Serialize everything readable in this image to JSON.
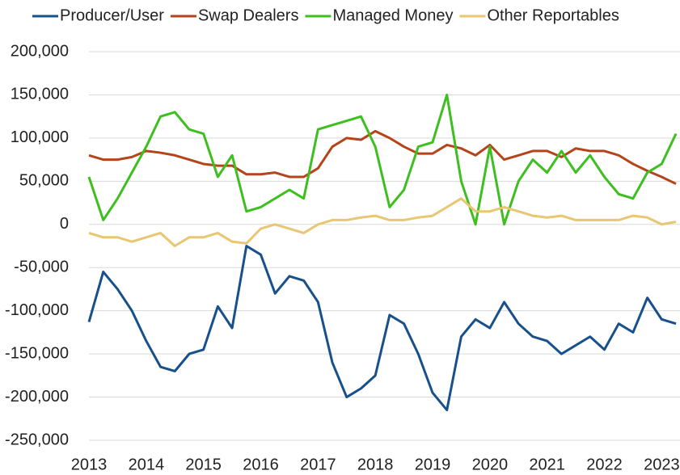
{
  "chart_data": {
    "type": "line",
    "x": [
      2013,
      2013.25,
      2013.5,
      2013.75,
      2014,
      2014.25,
      2014.5,
      2014.75,
      2015,
      2015.25,
      2015.5,
      2015.75,
      2016,
      2016.25,
      2016.5,
      2016.75,
      2017,
      2017.25,
      2017.5,
      2017.75,
      2018,
      2018.25,
      2018.5,
      2018.75,
      2019,
      2019.25,
      2019.5,
      2019.75,
      2020,
      2020.25,
      2020.5,
      2020.75,
      2021,
      2021.25,
      2021.5,
      2021.75,
      2022,
      2022.25,
      2022.5,
      2022.75,
      2023,
      2023.25
    ],
    "series": [
      {
        "name": "Producer/User",
        "color": "#17508a",
        "values": [
          -113000,
          -55000,
          -75000,
          -100000,
          -135000,
          -165000,
          -170000,
          -150000,
          -145000,
          -95000,
          -120000,
          -25000,
          -35000,
          -80000,
          -60000,
          -65000,
          -90000,
          -160000,
          -200000,
          -190000,
          -175000,
          -105000,
          -115000,
          -150000,
          -195000,
          -215000,
          -130000,
          -110000,
          -120000,
          -90000,
          -115000,
          -130000,
          -135000,
          -150000,
          -140000,
          -130000,
          -145000,
          -115000,
          -125000,
          -85000,
          -110000,
          -115000
        ]
      },
      {
        "name": "Swap Dealers",
        "color": "#b5441a",
        "values": [
          80000,
          75000,
          75000,
          78000,
          85000,
          83000,
          80000,
          75000,
          70000,
          68000,
          68000,
          58000,
          58000,
          60000,
          55000,
          55000,
          65000,
          90000,
          100000,
          98000,
          108000,
          100000,
          90000,
          82000,
          82000,
          92000,
          88000,
          80000,
          92000,
          75000,
          80000,
          85000,
          85000,
          78000,
          88000,
          85000,
          85000,
          80000,
          70000,
          62000,
          55000,
          47000
        ]
      },
      {
        "name": "Managed Money",
        "color": "#3dbf1f",
        "values": [
          55000,
          5000,
          30000,
          60000,
          90000,
          125000,
          130000,
          110000,
          105000,
          55000,
          80000,
          15000,
          20000,
          30000,
          40000,
          30000,
          110000,
          115000,
          120000,
          125000,
          90000,
          20000,
          40000,
          90000,
          95000,
          150000,
          50000,
          0,
          90000,
          0,
          50000,
          75000,
          60000,
          85000,
          60000,
          80000,
          55000,
          35000,
          30000,
          60000,
          70000,
          105000
        ]
      },
      {
        "name": "Other Reportables",
        "color": "#e8c672",
        "values": [
          -10000,
          -15000,
          -15000,
          -20000,
          -15000,
          -10000,
          -25000,
          -15000,
          -15000,
          -10000,
          -20000,
          -22000,
          -5000,
          0,
          -5000,
          -10000,
          0,
          5000,
          5000,
          8000,
          10000,
          5000,
          5000,
          8000,
          10000,
          20000,
          30000,
          15000,
          15000,
          20000,
          15000,
          10000,
          8000,
          10000,
          5000,
          5000,
          5000,
          5000,
          10000,
          8000,
          0,
          3000
        ]
      }
    ],
    "xlim": [
      2013,
      2023.32
    ],
    "xticks": [
      2013,
      2014,
      2015,
      2016,
      2017,
      2018,
      2019,
      2020,
      2021,
      2022,
      2023
    ],
    "ylim": [
      -250000,
      200000
    ],
    "yticks": [
      {
        "value": -250000,
        "label": "-250,000"
      },
      {
        "value": -200000,
        "label": "-200,000"
      },
      {
        "value": -150000,
        "label": "-150,000"
      },
      {
        "value": -100000,
        "label": "-100,000"
      },
      {
        "value": -50000,
        "label": "-50,000"
      },
      0,
      {
        "value": 50000,
        "label": "50,000"
      },
      {
        "value": 100000,
        "label": "100,000"
      },
      {
        "value": 150000,
        "label": "150,000"
      },
      {
        "value": 200000,
        "label": "200,000"
      }
    ],
    "grid": true,
    "legend": "top"
  }
}
